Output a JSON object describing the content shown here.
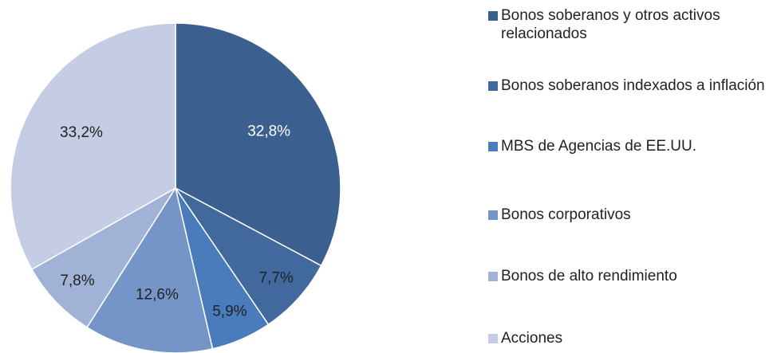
{
  "chart_data": {
    "type": "pie",
    "categories": [
      "Bonos soberanos y otros activos relacionados",
      "Bonos soberanos indexados a inflación",
      "MBS de Agencias de EE.UU.",
      "Bonos corporativos",
      "Bonos de alto rendimiento",
      "Acciones"
    ],
    "values": [
      32.8,
      7.7,
      5.9,
      12.6,
      7.8,
      33.2
    ],
    "value_labels": [
      "32,8%",
      "7,7%",
      "5,9%",
      "12,6%",
      "7,8%",
      "33,2%"
    ],
    "colors": [
      "#3b5f8e",
      "#41699e",
      "#4a7bbd",
      "#7594c7",
      "#a0b3d6",
      "#c4cde3"
    ],
    "legend": "right"
  }
}
